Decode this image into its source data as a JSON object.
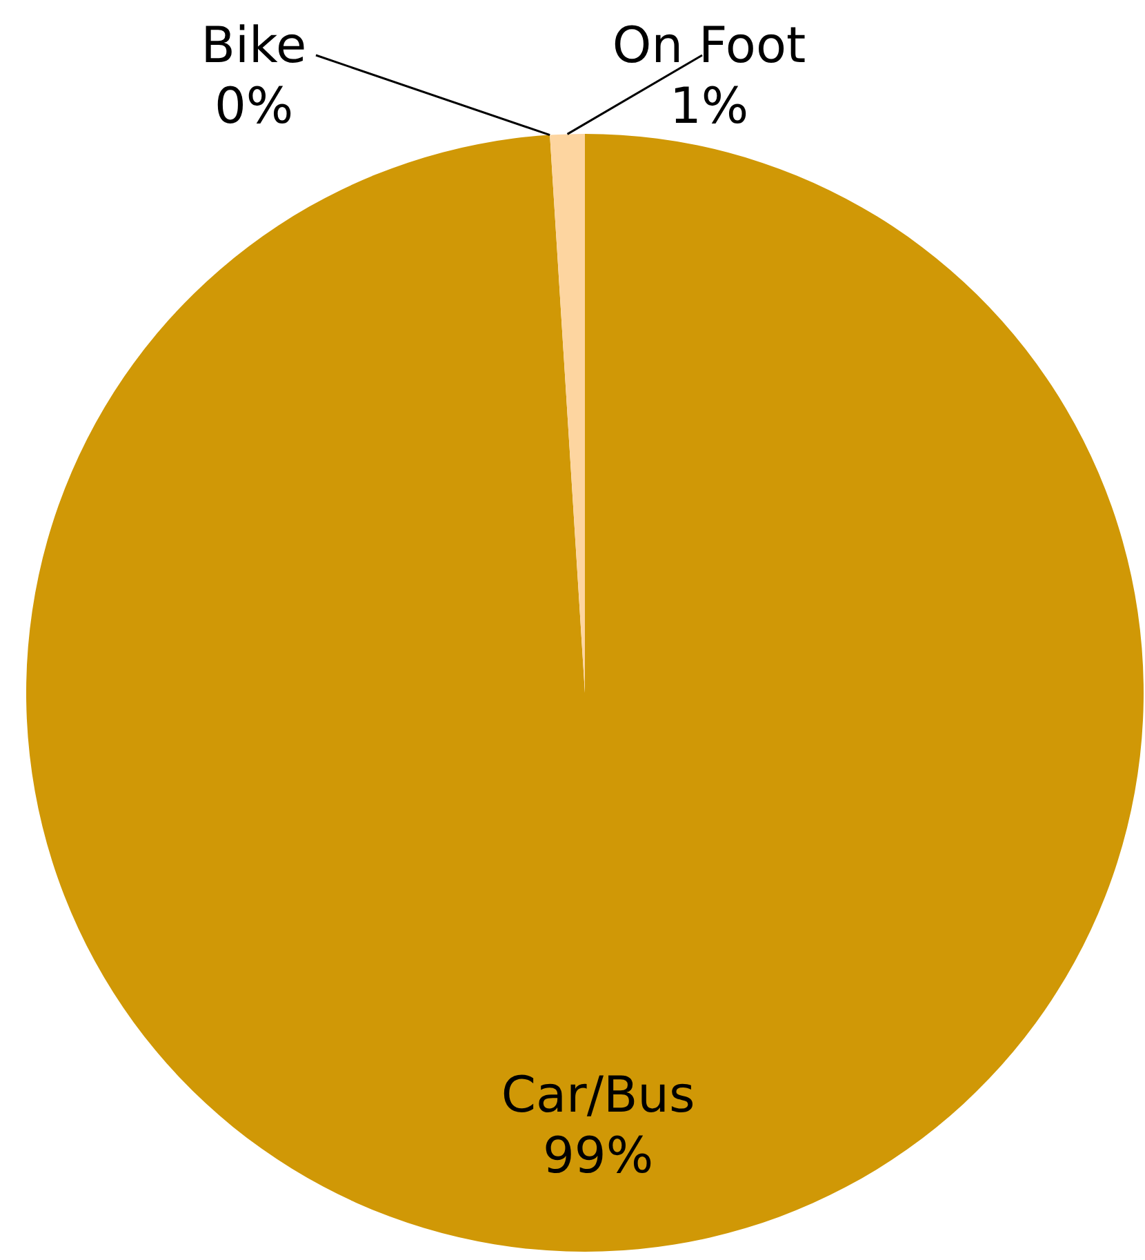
{
  "chart_data": {
    "type": "pie",
    "categories": [
      "Car/Bus",
      "Bike",
      "On Foot"
    ],
    "values": [
      99,
      0,
      1
    ],
    "colors": [
      "#d09806",
      "#f5c27a",
      "#fdd5a0"
    ],
    "value_labels": [
      "99%",
      "0%",
      "1%"
    ]
  }
}
